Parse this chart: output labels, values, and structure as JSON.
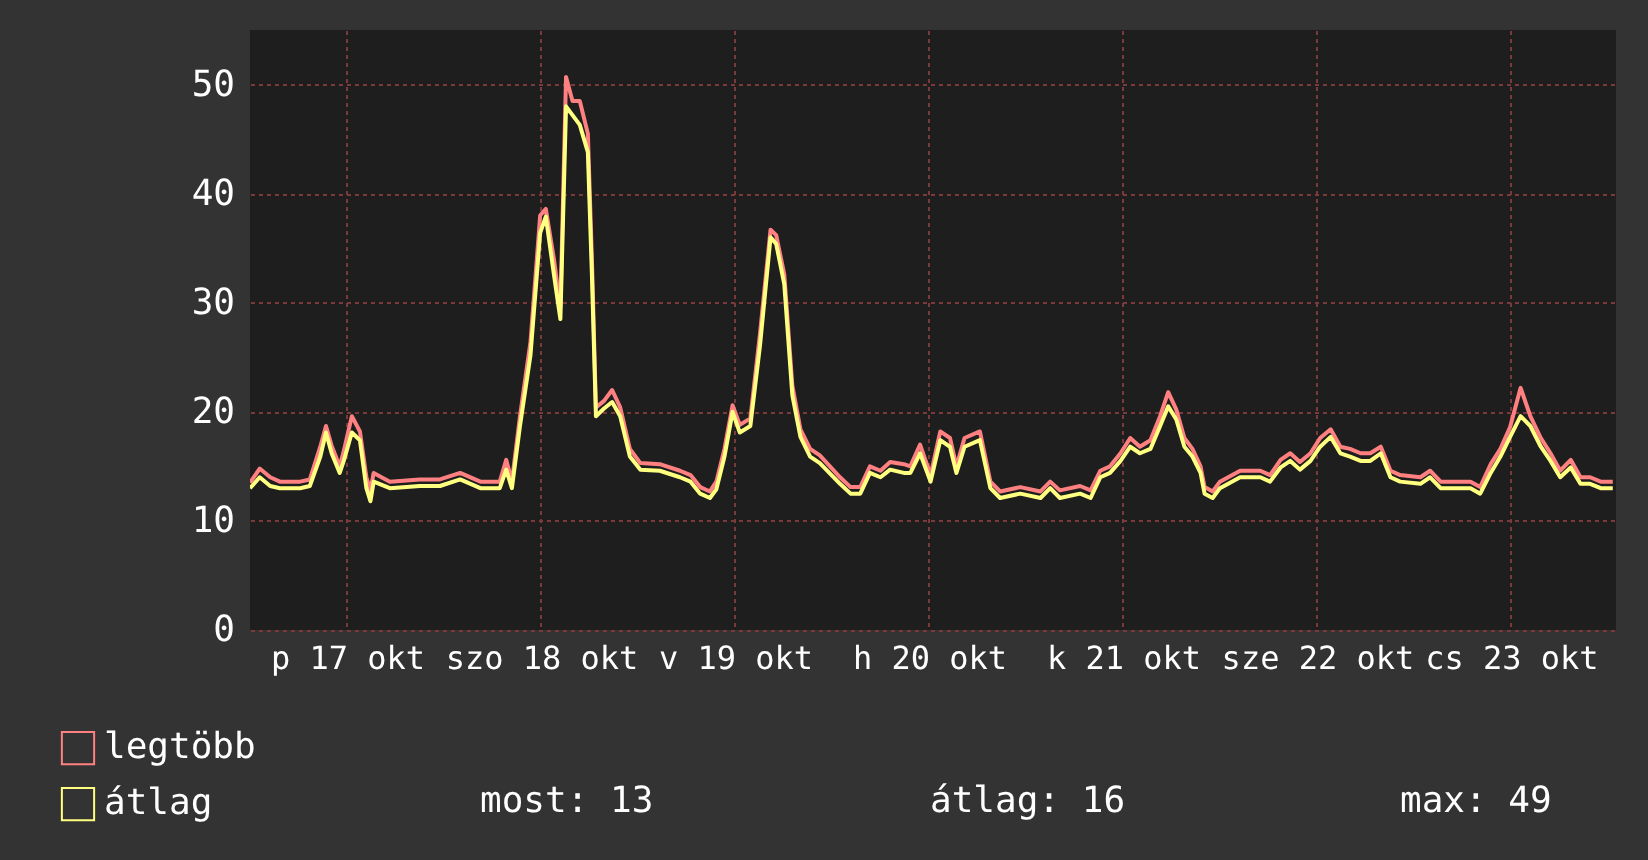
{
  "chart_data": {
    "type": "line",
    "x": [
      "--10-17T00:00",
      "--10-17T01:12",
      "--10-17T02:30",
      "--10-17T03:42",
      "--10-17T06:12",
      "--10-17T07:24",
      "--10-17T08:42",
      "--10-17T09:24",
      "--10-17T10:06",
      "--10-17T11:06",
      "--10-17T11:36",
      "--10-17T12:36",
      "--10-17T13:36",
      "--10-17T14:24",
      "--10-17T14:54",
      "--10-17T15:18",
      "--10-17T17:18",
      "--10-17T21:00",
      "--10-17T23:30",
      "--10-18T02:00",
      "--10-18T04:30",
      "--10-18T06:54",
      "--10-18T07:42",
      "--10-18T08:24",
      "--10-18T09:24",
      "--10-18T10:42",
      "--10-18T11:54",
      "--10-18T12:36",
      "--10-18T13:36",
      "--10-18T14:24",
      "--10-18T15:06",
      "--10-18T15:54",
      "--10-18T16:48",
      "--10-18T17:48",
      "--10-18T18:18",
      "--10-18T18:48",
      "--10-18T19:48",
      "--10-18T20:48",
      "--10-18T21:48",
      "--10-18T23:00",
      "--10-19T00:18",
      "--10-19T02:42",
      "--10-19T05:12",
      "--10-19T06:30",
      "--10-19T07:42",
      "--10-19T08:54",
      "--10-19T09:42",
      "--10-19T10:42",
      "--10-19T11:42",
      "--10-19T12:36",
      "--10-19T13:54",
      "--10-19T15:06",
      "--10-19T16:24",
      "--10-19T17:06",
      "--10-19T18:06",
      "--10-19T19:06",
      "--10-19T20:06",
      "--10-19T21:18",
      "--10-19T22:30",
      "--10-20T01:00",
      "--10-20T02:18",
      "--10-20T03:30",
      "--10-20T04:42",
      "--10-20T06:00",
      "--10-20T07:12",
      "--10-20T08:54",
      "--10-20T09:42",
      "--10-20T10:54",
      "--10-20T12:12",
      "--10-20T13:24",
      "--10-20T14:36",
      "--10-20T15:24",
      "--10-20T16:24",
      "--10-20T18:18",
      "--10-20T19:36",
      "--10-20T20:48",
      "--10-20T23:18",
      "--10-21T01:48",
      "--10-21T03:00",
      "--10-21T04:12",
      "--10-21T06:42",
      "--10-21T08:00",
      "--10-21T09:12",
      "--10-21T10:24",
      "--10-21T11:42",
      "--10-21T12:54",
      "--10-21T14:06",
      "--10-21T15:24",
      "--10-21T16:36",
      "--10-21T17:36",
      "--10-21T18:36",
      "--10-21T19:36",
      "--10-21T20:36",
      "--10-21T21:36",
      "--10-21T22:06",
      "--10-21T23:06",
      "--10-22T00:00",
      "--10-22T02:30",
      "--10-22T05:00",
      "--10-22T06:12",
      "--10-22T07:30",
      "--10-22T08:42",
      "--10-22T09:54",
      "--10-22T11:12",
      "--10-22T12:24",
      "--10-22T13:42",
      "--10-22T14:54",
      "--10-22T16:06",
      "--10-22T17:24",
      "--10-22T18:36",
      "--10-22T19:54",
      "--10-22T21:06",
      "--10-22T22:18",
      "--10-23T00:48",
      "--10-23T02:00",
      "--10-23T03:18",
      "--10-23T07:00",
      "--10-23T08:12",
      "--10-23T09:30",
      "--10-23T10:42",
      "--10-23T11:54",
      "--10-23T13:12",
      "--10-23T14:24",
      "--10-23T15:42",
      "--10-23T16:54",
      "--10-23T18:06",
      "--10-23T19:24",
      "--10-23T20:36",
      "--10-23T21:48",
      "--10-23T23:06",
      "--10-24T00:36"
    ],
    "series": [
      {
        "name": "legtöbb",
        "color": "#ff8080",
        "values": [
          13.5,
          14.8,
          14,
          13.6,
          13.6,
          13.8,
          16.8,
          18.7,
          16.9,
          15,
          16.4,
          19.6,
          18.2,
          14,
          12.8,
          14.4,
          13.6,
          13.8,
          13.8,
          14.4,
          13.6,
          13.6,
          15.6,
          13.6,
          19.6,
          26.4,
          38,
          38.6,
          34,
          29.5,
          50.7,
          48.5,
          48.5,
          45.5,
          34,
          20.4,
          21,
          22,
          20.4,
          16.6,
          15.3,
          15.2,
          14.6,
          14.2,
          13.1,
          12.7,
          13.6,
          16.6,
          20.6,
          18.8,
          19.4,
          27.2,
          36.7,
          36.2,
          32.6,
          22.4,
          18.4,
          16.6,
          16,
          14,
          13.1,
          13.1,
          15,
          14.6,
          15.4,
          15.2,
          15,
          17,
          14.2,
          18.2,
          17.6,
          15,
          17.6,
          18.2,
          13.6,
          12.7,
          13.1,
          12.7,
          13.6,
          12.8,
          13.2,
          12.8,
          14.6,
          15,
          16.2,
          17.6,
          16.8,
          17.4,
          19.6,
          21.8,
          20.2,
          17.6,
          16.6,
          15,
          13.1,
          12.7,
          13.6,
          14.6,
          14.6,
          14.2,
          15.6,
          16.2,
          15.4,
          16.2,
          17.6,
          18.4,
          16.8,
          16.6,
          16.2,
          16.2,
          16.8,
          14.6,
          14.2,
          14,
          14.6,
          13.6,
          13.6,
          13.1,
          15.2,
          16.6,
          18.6,
          22.2,
          19.6,
          17.6,
          16.2,
          14.6,
          15.6,
          14,
          14,
          13.6,
          13.6
        ]
      },
      {
        "name": "átlag",
        "color": "#ffff80",
        "values": [
          13,
          14,
          13.2,
          13,
          13,
          13.2,
          15.9,
          18.1,
          16.2,
          14.4,
          15.5,
          18.1,
          17.4,
          13,
          11.8,
          13.6,
          13,
          13.2,
          13.2,
          13.8,
          13,
          13,
          14.7,
          13,
          18.7,
          25.2,
          36.4,
          37.9,
          32.6,
          28.5,
          48,
          47.2,
          46.3,
          43.8,
          32.6,
          19.6,
          20.3,
          20.9,
          19.6,
          15.9,
          14.7,
          14.6,
          14,
          13.6,
          12.5,
          12.1,
          12.9,
          15.9,
          20,
          18.1,
          18.7,
          26.1,
          36,
          35.4,
          31.7,
          21.5,
          17.7,
          15.9,
          15.3,
          13.4,
          12.5,
          12.5,
          14.4,
          14,
          14.7,
          14.4,
          14.4,
          16.2,
          13.6,
          17.4,
          16.8,
          14.4,
          16.8,
          17.4,
          13,
          12.1,
          12.5,
          12.1,
          13,
          12.1,
          12.5,
          12.1,
          14,
          14.4,
          15.5,
          16.8,
          16.2,
          16.6,
          18.7,
          20.5,
          19.3,
          16.8,
          15.9,
          14.4,
          12.5,
          12.1,
          13,
          14,
          14,
          13.6,
          14.9,
          15.5,
          14.7,
          15.5,
          16.8,
          17.7,
          16.2,
          15.9,
          15.5,
          15.5,
          16.2,
          14,
          13.6,
          13.4,
          14,
          13,
          13,
          12.5,
          14.4,
          15.9,
          17.7,
          19.6,
          18.7,
          16.8,
          15.5,
          14,
          14.9,
          13.4,
          13.4,
          13,
          13
        ]
      }
    ],
    "xlim": [
      "--10-17T00:00",
      "--10-24T01:00"
    ],
    "xticks": [
      {
        "value": "--10-17T12:00",
        "label": "p 17 okt"
      },
      {
        "value": "--10-18T12:00",
        "label": "szo 18 okt"
      },
      {
        "value": "--10-19T12:00",
        "label": "v 19 okt"
      },
      {
        "value": "--10-20T12:00",
        "label": "h 20 okt"
      },
      {
        "value": "--10-21T12:00",
        "label": "k 21 okt"
      },
      {
        "value": "--10-22T12:00",
        "label": "sze 22 okt"
      },
      {
        "value": "--10-23T12:00",
        "label": "cs 23 okt"
      }
    ],
    "ylim": [
      0,
      55
    ],
    "yticks": [
      0,
      10,
      20,
      30,
      40,
      50
    ],
    "grid": true,
    "legend": "bottom left",
    "annotations": [
      "most: 13",
      "átlag: 16",
      "max: 49"
    ]
  }
}
